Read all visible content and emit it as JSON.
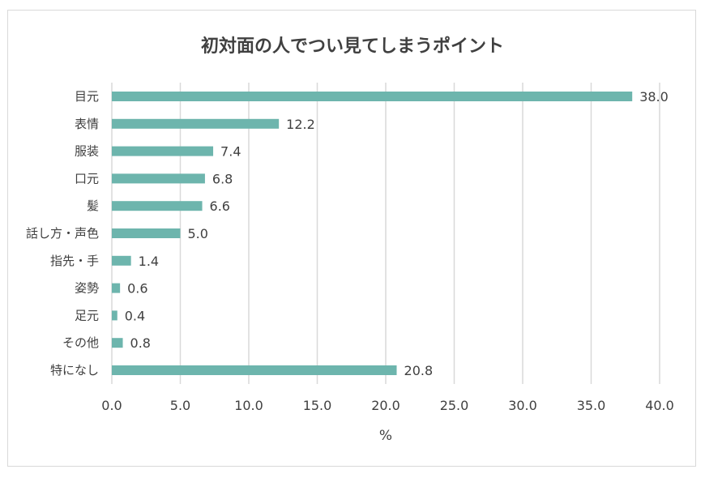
{
  "chart_data": {
    "type": "bar",
    "orientation": "horizontal",
    "title": "初対面の人でつい見てしまうポイント",
    "xlabel": "%",
    "ylabel": "",
    "xlim": [
      0,
      40
    ],
    "xticks": [
      "0.0",
      "5.0",
      "10.0",
      "15.0",
      "20.0",
      "25.0",
      "30.0",
      "35.0",
      "40.0"
    ],
    "categories": [
      "目元",
      "表情",
      "服装",
      "口元",
      "髪",
      "話し方・声色",
      "指先・手",
      "姿勢",
      "足元",
      "その他",
      "特になし"
    ],
    "values": [
      38.0,
      12.2,
      7.4,
      6.8,
      6.6,
      5.0,
      1.4,
      0.6,
      0.4,
      0.8,
      20.8
    ],
    "value_labels": [
      "38.0",
      "12.2",
      "7.4",
      "6.8",
      "6.6",
      "5.0",
      "1.4",
      "0.6",
      "0.4",
      "0.8",
      "20.8"
    ],
    "grid": "vertical",
    "legend": "none",
    "bar_color": "#6db5ad",
    "grid_color": "#d9d9d9"
  }
}
